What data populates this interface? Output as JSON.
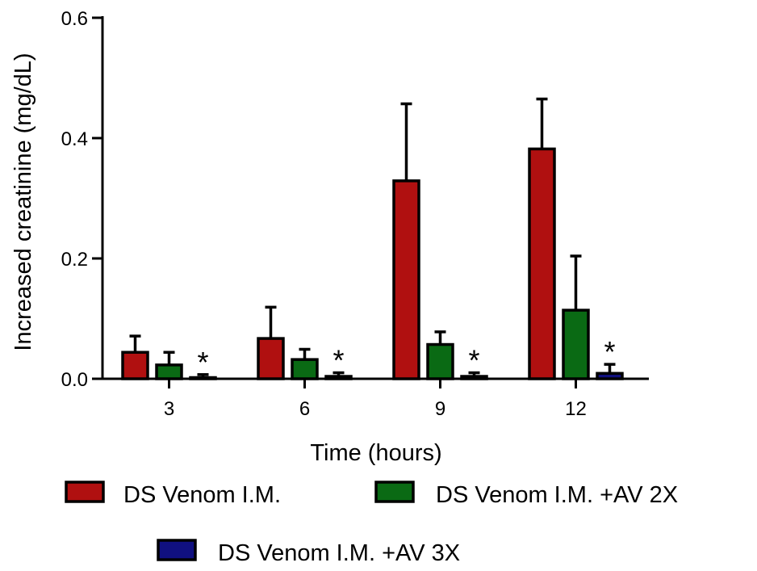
{
  "chart_data": {
    "type": "bar",
    "xlabel": "Time (hours)",
    "ylabel": "Increased creatinine (mg/dL)",
    "ylim": [
      0,
      0.6
    ],
    "yticks": [
      "0.0",
      "0.2",
      "0.4",
      "0.6"
    ],
    "categories": [
      "3",
      "6",
      "9",
      "12"
    ],
    "series": [
      {
        "name": "DS Venom I.M.",
        "color": "#b01010",
        "values": [
          0.044,
          0.067,
          0.329,
          0.382
        ],
        "errors": [
          0.027,
          0.052,
          0.128,
          0.083
        ]
      },
      {
        "name": "DS Venom I.M. +AV 2X",
        "color": "#0a6a14",
        "values": [
          0.023,
          0.032,
          0.057,
          0.114
        ],
        "errors": [
          0.021,
          0.017,
          0.021,
          0.09
        ]
      },
      {
        "name": "DS Venom I.M. +AV 3X",
        "color": "#101080",
        "values": [
          0.002,
          0.004,
          0.004,
          0.009
        ],
        "errors": [
          0.005,
          0.006,
          0.006,
          0.015
        ]
      }
    ],
    "annotations": [
      {
        "category": "3",
        "series": "DS Venom I.M. +AV 3X",
        "text": "*"
      },
      {
        "category": "6",
        "series": "DS Venom I.M. +AV 3X",
        "text": "*"
      },
      {
        "category": "9",
        "series": "DS Venom I.M. +AV 3X",
        "text": "*"
      },
      {
        "category": "12",
        "series": "DS Venom I.M. +AV 3X",
        "text": "*"
      }
    ],
    "legend": "bottom",
    "grid": false
  }
}
